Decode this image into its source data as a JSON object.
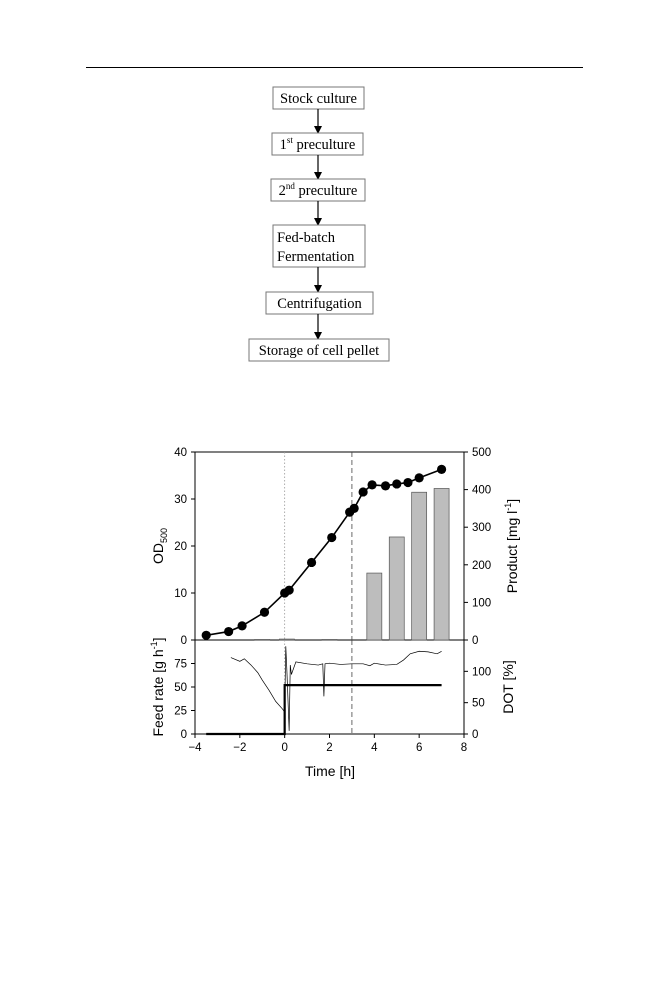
{
  "flowchart": {
    "steps": [
      {
        "text": "Stock culture"
      },
      {
        "text": "1",
        "sup": "st",
        "rest": " preculture"
      },
      {
        "text": "2",
        "sup": "nd",
        "rest": " preculture"
      },
      {
        "line1": "Fed-batch",
        "line2": "Fermentation"
      },
      {
        "text": "Centrifugation"
      },
      {
        "text": "Storage of cell pellet"
      }
    ]
  },
  "chart_data": [
    {
      "type": "line+bar",
      "panel": "top",
      "ylabel_left": "OD",
      "ylabel_left_sub": "500",
      "ylabel_right": "Product [mg l",
      "ylabel_right_sup": "-1",
      "ylabel_right_close": "]",
      "ylim_left": [
        0,
        40
      ],
      "ylim_right": [
        0,
        500
      ],
      "yticks_left": [
        "0",
        "10",
        "20",
        "30",
        "40"
      ],
      "yticks_right": [
        "0",
        "100",
        "200",
        "300",
        "400",
        "500"
      ],
      "xlim": [
        -4,
        8
      ],
      "series": [
        {
          "name": "OD500",
          "kind": "line-marker",
          "x": [
            -3.5,
            -2.5,
            -1.9,
            -0.9,
            0,
            0.2,
            1.2,
            2.1,
            2.9,
            3.1,
            3.5,
            3.9,
            4.5,
            5.0,
            5.5,
            6.0,
            7.0
          ],
          "y": [
            1.0,
            1.8,
            3.0,
            5.9,
            10.0,
            10.6,
            16.5,
            21.8,
            27.2,
            28.0,
            31.5,
            33.0,
            32.8,
            33.2,
            33.5,
            34.5,
            36.3
          ]
        },
        {
          "name": "Product",
          "kind": "bar",
          "x": [
            -1,
            0.1,
            2.0,
            4.0,
            5.0,
            6.0,
            7.0
          ],
          "y": [
            1.5,
            2.5,
            1.5,
            178,
            274,
            393,
            403
          ]
        }
      ],
      "vlines": [
        {
          "x": 0,
          "style": "dotted"
        },
        {
          "x": 3,
          "style": "dashed"
        }
      ]
    },
    {
      "type": "line",
      "panel": "bottom",
      "xlabel": "Time [h]",
      "ylabel_left": "Feed rate [g h",
      "ylabel_left_sup": "-1",
      "ylabel_left_close": "]",
      "ylabel_right": "DOT [%]",
      "ylim_left": [
        0,
        100
      ],
      "ylim_right": [
        0,
        150
      ],
      "yticks_left": [
        "0",
        "25",
        "50",
        "75"
      ],
      "yticks_right": [
        "0",
        "50",
        "100"
      ],
      "xlim": [
        -4,
        8
      ],
      "xticks": [
        "−4",
        "−2",
        "0",
        "2",
        "4",
        "6",
        "8"
      ],
      "series": [
        {
          "name": "Feed rate",
          "kind": "step",
          "x": [
            -3.5,
            0,
            0,
            7.0
          ],
          "y": [
            0,
            0,
            52,
            52
          ]
        },
        {
          "name": "DOT",
          "kind": "thin-line",
          "x": [
            -2.4,
            -2.0,
            -1.8,
            -1.5,
            -1.2,
            -1.0,
            -0.7,
            -0.4,
            -0.1,
            0.0,
            0.05,
            0.1,
            0.2,
            0.25,
            0.3,
            0.5,
            1.0,
            1.5,
            1.7,
            1.75,
            1.8,
            2.0,
            2.5,
            3.0,
            3.5,
            3.8,
            4.0,
            4.5,
            5.0,
            5.3,
            5.6,
            6.0,
            6.4,
            6.8,
            7.0
          ],
          "y": [
            122,
            116,
            120,
            110,
            98,
            86,
            70,
            52,
            40,
            35,
            140,
            100,
            5,
            110,
            95,
            115,
            112,
            110,
            112,
            60,
            112,
            113,
            111,
            112,
            112,
            109,
            113,
            110,
            111,
            118,
            128,
            132,
            131,
            128,
            132
          ]
        }
      ],
      "vlines": [
        {
          "x": 0,
          "style": "dotted"
        },
        {
          "x": 3,
          "style": "dashed"
        }
      ]
    }
  ]
}
